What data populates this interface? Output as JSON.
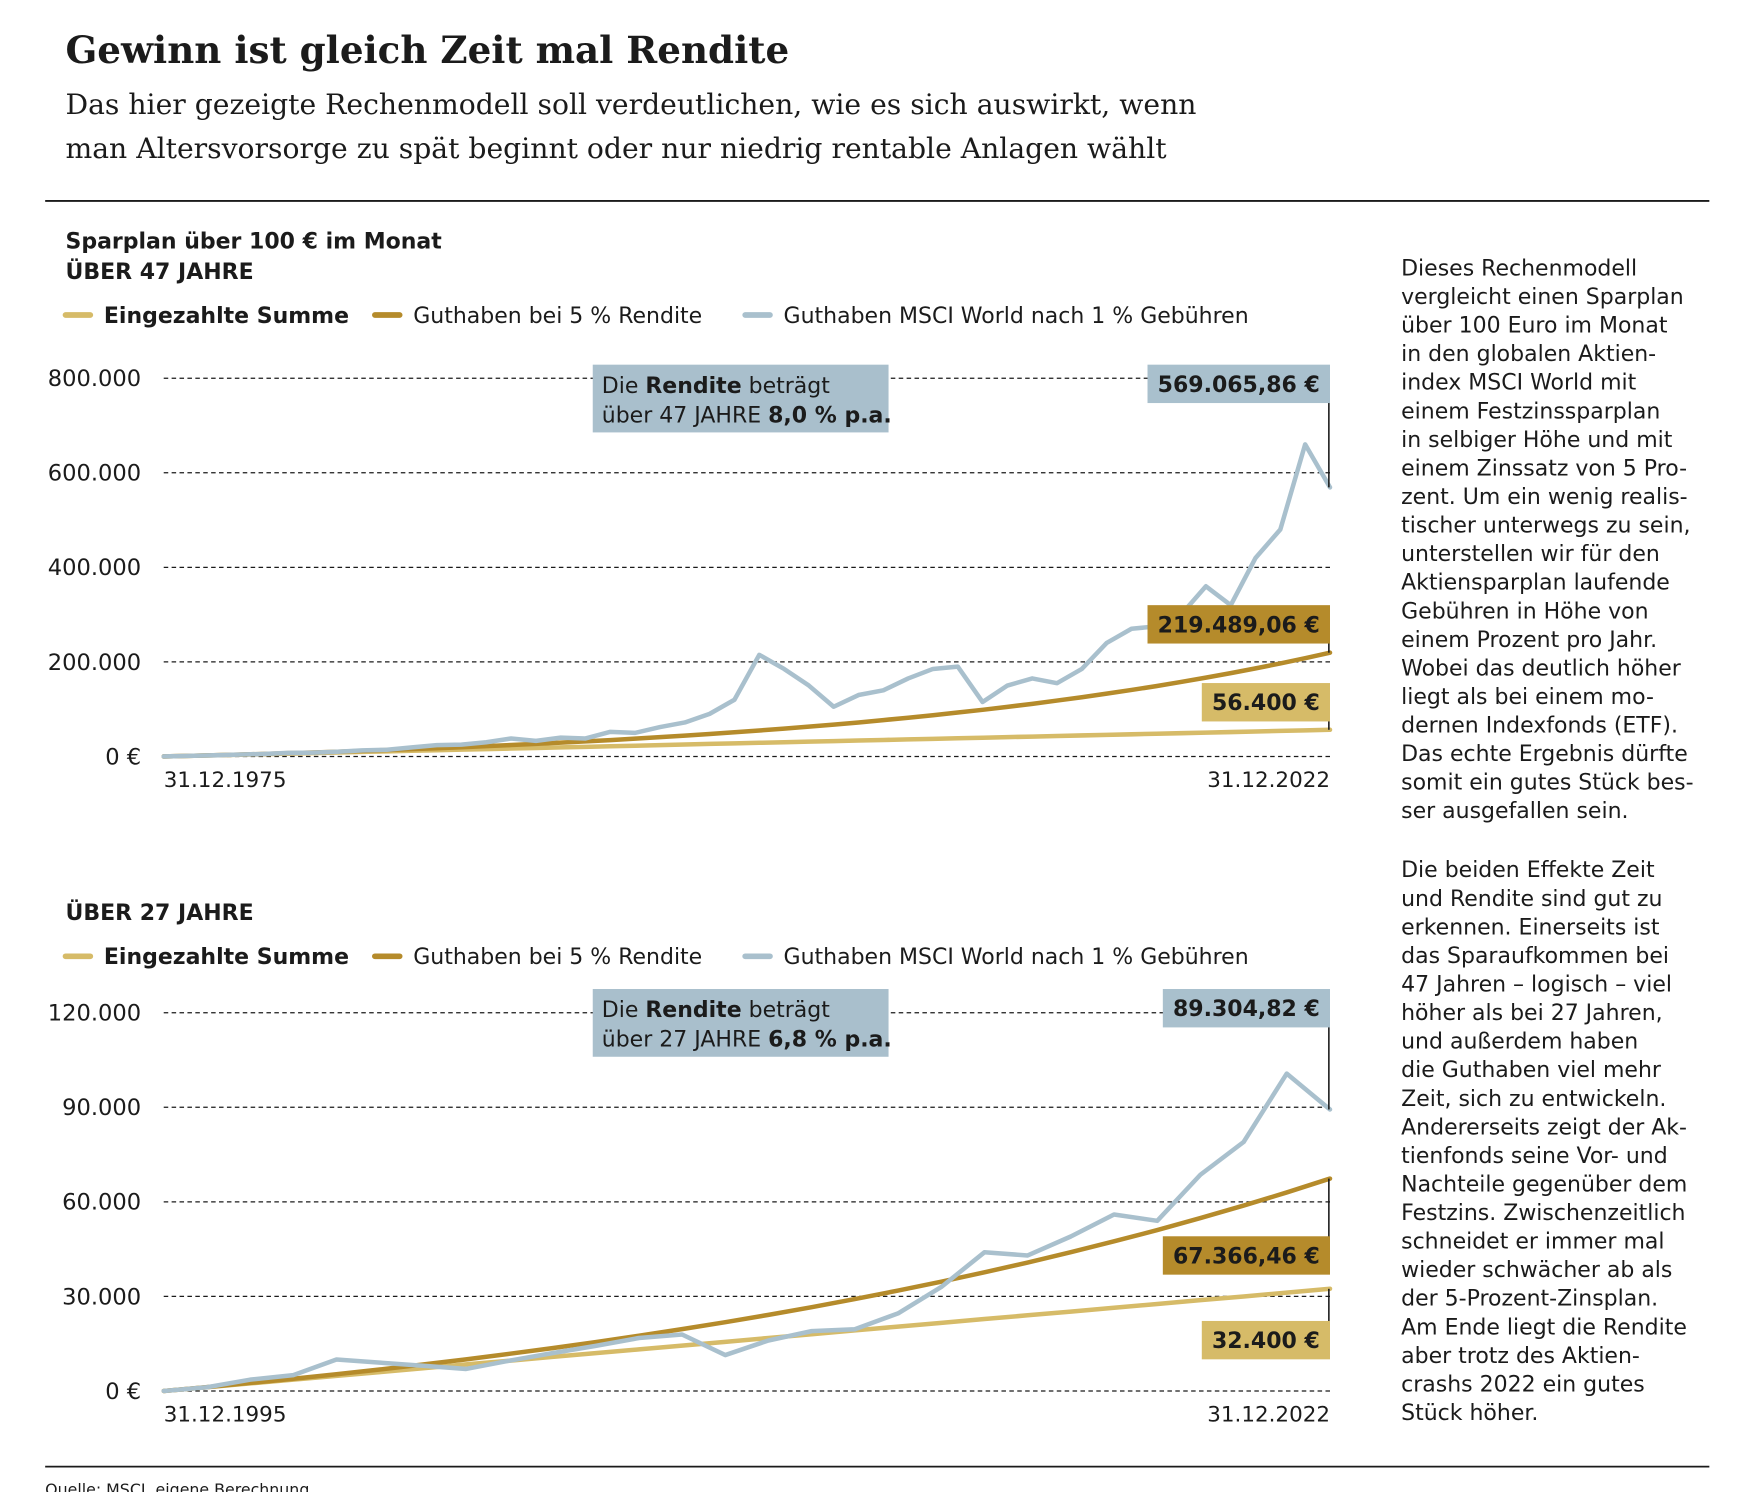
{
  "header": {
    "title": "Gewinn ist gleich Zeit mal Rendite",
    "subtitle": [
      "Das hier gezeigte Rechenmodell soll verdeutlichen, wie es sich auswirkt, wenn",
      "man Altersvorsorge zu spät beginnt oder nur niedrig rentable Anlagen wählt"
    ]
  },
  "chart_data": [
    {
      "type": "line",
      "title": "Sparplan über 100 € im Monat",
      "subtitle": "ÜBER 47 JAHRE",
      "annotation": [
        [
          "Die ",
          "Rendite",
          " beträgt"
        ],
        [
          "über 47 JAHRE ",
          "8,0 % p.a."
        ]
      ],
      "x": [
        1975,
        1976,
        1977,
        1978,
        1979,
        1980,
        1981,
        1982,
        1983,
        1984,
        1985,
        1986,
        1987,
        1988,
        1989,
        1990,
        1991,
        1992,
        1993,
        1994,
        1995,
        1996,
        1997,
        1998,
        1999,
        2000,
        2001,
        2002,
        2003,
        2004,
        2005,
        2006,
        2007,
        2008,
        2009,
        2010,
        2011,
        2012,
        2013,
        2014,
        2015,
        2016,
        2017,
        2018,
        2019,
        2020,
        2021,
        2022
      ],
      "xlim": [
        1975,
        2022
      ],
      "xticks": [
        {
          "value": 1975,
          "label": "31.12.1975"
        },
        {
          "value": 2022,
          "label": "31.12.2022"
        }
      ],
      "ylim": [
        0,
        800000
      ],
      "yticks": [
        {
          "value": 0,
          "label": "0 €"
        },
        {
          "value": 200000,
          "label": "200.000"
        },
        {
          "value": 400000,
          "label": "400.000"
        },
        {
          "value": 600000,
          "label": "600.000"
        },
        {
          "value": 800000,
          "label": "800.000"
        }
      ],
      "grid": true,
      "series": [
        {
          "name": "Eingezahlte Summe",
          "color": "#d6bb68",
          "label_color": "#ffffff",
          "end_label": "56.400 €",
          "values": [
            0,
            1200,
            2400,
            3600,
            4800,
            6000,
            7200,
            8400,
            9600,
            10800,
            12000,
            13200,
            14400,
            15600,
            16800,
            18000,
            19200,
            20400,
            21600,
            22800,
            24000,
            25200,
            26400,
            27600,
            28800,
            30000,
            31200,
            32400,
            33600,
            34800,
            36000,
            37200,
            38400,
            39600,
            40800,
            42000,
            43200,
            44400,
            45600,
            46800,
            48000,
            49200,
            50400,
            51600,
            52800,
            54000,
            55200,
            56400
          ]
        },
        {
          "name": "Guthaben bei 5 % Rendite",
          "color": "#b58b2b",
          "label_color": "#ffffff",
          "end_label": "219.489,06 €",
          "values": [
            0,
            1232,
            2526,
            3884,
            5311,
            6809,
            8382,
            10033,
            11768,
            13587,
            15499,
            17505,
            19615,
            21826,
            24150,
            26590,
            29153,
            31841,
            34666,
            37633,
            40746,
            44016,
            47449,
            51052,
            54838,
            58813,
            62985,
            67367,
            71966,
            76796,
            81868,
            87194,
            92786,
            98659,
            104823,
            111297,
            118094,
            125231,
            132726,
            140595,
            148856,
            157531,
            166640,
            176204,
            186247,
            196790,
            207863,
            219489.06
          ]
        },
        {
          "name": "Guthaben MSCI World nach 1 % Gebühren",
          "color": "#a9c0cd",
          "label_color": "#1b1b1b",
          "end_label": "569.065,86 €",
          "values": [
            0,
            1300,
            2500,
            3800,
            5200,
            7500,
            8000,
            10000,
            13000,
            14000,
            19000,
            24000,
            25000,
            30000,
            38000,
            33000,
            40000,
            38000,
            52000,
            50000,
            62000,
            72000,
            90000,
            120000,
            215000,
            185000,
            150000,
            105000,
            130000,
            140000,
            165000,
            185000,
            190000,
            115000,
            150000,
            165000,
            155000,
            185000,
            240000,
            270000,
            275000,
            300000,
            360000,
            320000,
            420000,
            480000,
            660000,
            569065.86
          ]
        }
      ]
    },
    {
      "type": "line",
      "subtitle": "ÜBER 27 JAHRE",
      "annotation": [
        [
          "Die ",
          "Rendite",
          " beträgt"
        ],
        [
          "über 27 JAHRE ",
          "6,8 % p.a."
        ]
      ],
      "x": [
        1995,
        1996,
        1997,
        1998,
        1999,
        2000,
        2001,
        2002,
        2003,
        2004,
        2005,
        2006,
        2007,
        2008,
        2009,
        2010,
        2011,
        2012,
        2013,
        2014,
        2015,
        2016,
        2017,
        2018,
        2019,
        2020,
        2021,
        2022
      ],
      "xlim": [
        1995,
        2022
      ],
      "xticks": [
        {
          "value": 1995,
          "label": "31.12.1995"
        },
        {
          "value": 2022,
          "label": "31.12.2022"
        }
      ],
      "ylim": [
        0,
        120000
      ],
      "yticks": [
        {
          "value": 0,
          "label": "0 €"
        },
        {
          "value": 30000,
          "label": "30.000"
        },
        {
          "value": 60000,
          "label": "60.000"
        },
        {
          "value": 90000,
          "label": "90.000"
        },
        {
          "value": 120000,
          "label": "120.000"
        }
      ],
      "grid": true,
      "series": [
        {
          "name": "Eingezahlte Summe",
          "color": "#d6bb68",
          "label_color": "#ffffff",
          "end_label": "32.400 €",
          "values": [
            0,
            1200,
            2400,
            3600,
            4800,
            6000,
            7200,
            8400,
            9600,
            10800,
            12000,
            13200,
            14400,
            15600,
            16800,
            18000,
            19200,
            20400,
            21600,
            22800,
            24000,
            25200,
            26400,
            27600,
            28800,
            30000,
            31200,
            32400
          ]
        },
        {
          "name": "Guthaben bei 5 % Rendite",
          "color": "#b58b2b",
          "label_color": "#ffffff",
          "end_label": "67.366,46 €",
          "values": [
            0,
            1232,
            2526,
            3884,
            5311,
            6809,
            8382,
            10033,
            11768,
            13587,
            15499,
            17505,
            19615,
            21826,
            24150,
            26590,
            29153,
            31841,
            34666,
            37633,
            40746,
            44016,
            47449,
            51052,
            54838,
            58813,
            62985,
            67366.46
          ]
        },
        {
          "name": "Guthaben MSCI World nach 1 % Gebühren",
          "color": "#a9c0cd",
          "label_color": "#1b1b1b",
          "end_label": "89.304,82 €",
          "values": [
            0,
            1200,
            3600,
            5000,
            10000,
            9000,
            8000,
            7000,
            9600,
            12000,
            14300,
            16800,
            17900,
            11400,
            16000,
            19000,
            19600,
            24600,
            33000,
            44000,
            43000,
            49000,
            56000,
            54000,
            68600,
            79000,
            100700,
            89304.82
          ]
        }
      ]
    }
  ],
  "sidebar": [
    [
      "Dieses Rechenmodell",
      "vergleicht einen Sparplan",
      "über 100 Euro im Monat",
      "in den globalen Aktien-",
      "index MSCI World mit",
      "einem Festzinssparplan",
      "in selbiger Höhe und mit",
      "einem Zinssatz von 5 Pro-",
      "zent. Um ein wenig realis-",
      "tischer unterwegs zu sein,",
      "unterstellen wir für den",
      "Aktiensparplan laufende",
      "Gebühren in Höhe von",
      "einem Prozent pro Jahr.",
      "Wobei das deutlich höher",
      "liegt als bei einem mo-",
      "dernen Indexfonds (ETF).",
      "Das echte Ergebnis dürfte",
      "somit ein gutes Stück bes-",
      "ser ausgefallen sein."
    ],
    [
      "Die beiden Effekte Zeit",
      "und Rendite sind gut zu",
      "erkennen. Einerseits ist",
      "das Sparaufkommen bei",
      "47 Jahren – logisch – viel",
      "höher als bei 27 Jahren,",
      "und außerdem haben",
      "die Guthaben viel mehr",
      "Zeit, sich zu entwickeln.",
      "Andererseits zeigt der Ak-",
      "tienfonds seine Vor- und",
      "Nachteile gegenüber dem",
      "Festzins. Zwischenzeitlich",
      "schneidet er immer mal",
      "wieder schwächer ab als",
      "der 5-Prozent-Zinsplan.",
      "Am Ende liegt die Rendite",
      "aber trotz des Aktien-",
      "crashs 2022 ein gutes",
      "Stück höher."
    ]
  ],
  "source": "Quelle: MSCI, eigene Berechnung"
}
